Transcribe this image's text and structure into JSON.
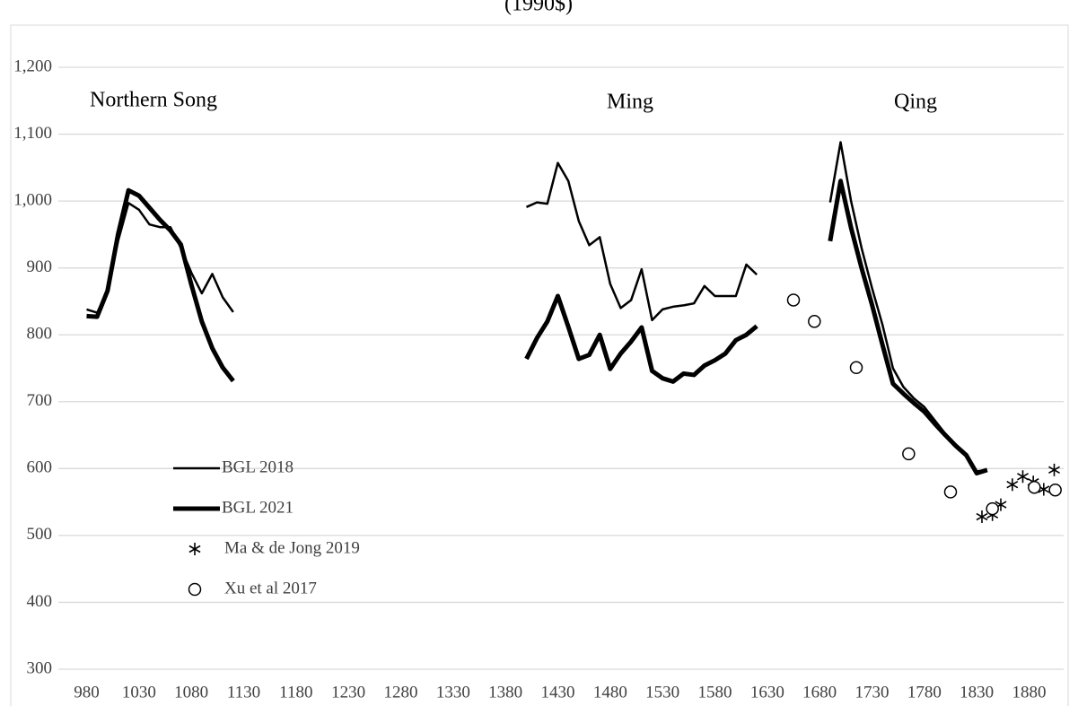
{
  "chart_data": {
    "type": "line",
    "title": "(1990$)",
    "annotations": [
      "Northern Song",
      "Ming",
      "Qing"
    ],
    "xlim": [
      953,
      1913
    ],
    "ylim": [
      300,
      1200
    ],
    "xticks": [
      980,
      1030,
      1080,
      1130,
      1180,
      1230,
      1280,
      1330,
      1380,
      1430,
      1480,
      1530,
      1580,
      1630,
      1680,
      1730,
      1780,
      1830,
      1880
    ],
    "yticks": [
      300,
      400,
      500,
      600,
      700,
      800,
      900,
      {
        "value": 1000,
        "label": "1,000"
      },
      {
        "value": 1100,
        "label": "1,100"
      },
      {
        "value": 1200,
        "label": "1,200"
      }
    ],
    "grid": true,
    "series": [
      {
        "name": "BGL 2018",
        "color": "#000000",
        "line_width": 2.5,
        "marker": "none",
        "x": [
          980,
          990,
          1000,
          1010,
          1020,
          1030,
          1040,
          1050,
          1060,
          1070,
          1080,
          1090,
          1100,
          1110,
          1120,
          1260,
          1400,
          1410,
          1420,
          1430,
          1440,
          1450,
          1460,
          1470,
          1480,
          1490,
          1500,
          1510,
          1520,
          1530,
          1540,
          1550,
          1560,
          1570,
          1580,
          1590,
          1600,
          1610,
          1620,
          1650,
          1690,
          1700,
          1710,
          1720,
          1730,
          1740,
          1750,
          1760,
          1770,
          1780,
          1790,
          1800,
          1810,
          1820,
          1830,
          1840
        ],
        "values": [
          838,
          833,
          865,
          940,
          997,
          987,
          965,
          961,
          961,
          930,
          893,
          862,
          891,
          856,
          834,
          null,
          991,
          998,
          996,
          1057,
          1030,
          970,
          934,
          946,
          876,
          840,
          852,
          898,
          822,
          838,
          842,
          844,
          847,
          873,
          858,
          858,
          858,
          905,
          890,
          null,
          998,
          1088,
          1000,
          930,
          870,
          815,
          750,
          722,
          705,
          692,
          672,
          652,
          636,
          622,
          596,
          598
        ]
      },
      {
        "name": "BGL 2021",
        "color": "#000000",
        "line_width": 5,
        "marker": "none",
        "x": [
          980,
          990,
          1000,
          1010,
          1020,
          1030,
          1040,
          1050,
          1060,
          1070,
          1080,
          1090,
          1100,
          1110,
          1120,
          1260,
          1400,
          1410,
          1420,
          1430,
          1440,
          1450,
          1460,
          1470,
          1480,
          1490,
          1500,
          1510,
          1520,
          1530,
          1540,
          1550,
          1560,
          1570,
          1580,
          1590,
          1600,
          1610,
          1620,
          1650,
          1690,
          1700,
          1710,
          1720,
          1730,
          1740,
          1750,
          1760,
          1770,
          1780,
          1790,
          1800,
          1810,
          1820,
          1830,
          1840
        ],
        "values": [
          828,
          827,
          866,
          950,
          1016,
          1008,
          990,
          972,
          956,
          935,
          875,
          820,
          780,
          751,
          731,
          null,
          764,
          795,
          820,
          858,
          812,
          764,
          770,
          800,
          749,
          772,
          790,
          811,
          746,
          735,
          730,
          742,
          740,
          754,
          762,
          772,
          792,
          800,
          813,
          null,
          940,
          1030,
          960,
          900,
          845,
          785,
          727,
          712,
          698,
          685,
          667,
          650,
          634,
          620,
          593,
          598
        ]
      },
      {
        "name": "Ma & de Jong 2019",
        "color": "#000000",
        "marker": "star",
        "x": [
          1835,
          1845,
          1853,
          1864,
          1874,
          1884,
          1894,
          1904
        ],
        "values": [
          528,
          531,
          546,
          576,
          588,
          580,
          569,
          598
        ]
      },
      {
        "name": "Xu et al 2017",
        "color": "#000000",
        "marker": "circle",
        "x": [
          1655,
          1675,
          1715,
          1765,
          1805,
          1845,
          1885,
          1905
        ],
        "values": [
          852,
          820,
          751,
          622,
          565,
          540,
          572,
          568
        ]
      }
    ]
  }
}
